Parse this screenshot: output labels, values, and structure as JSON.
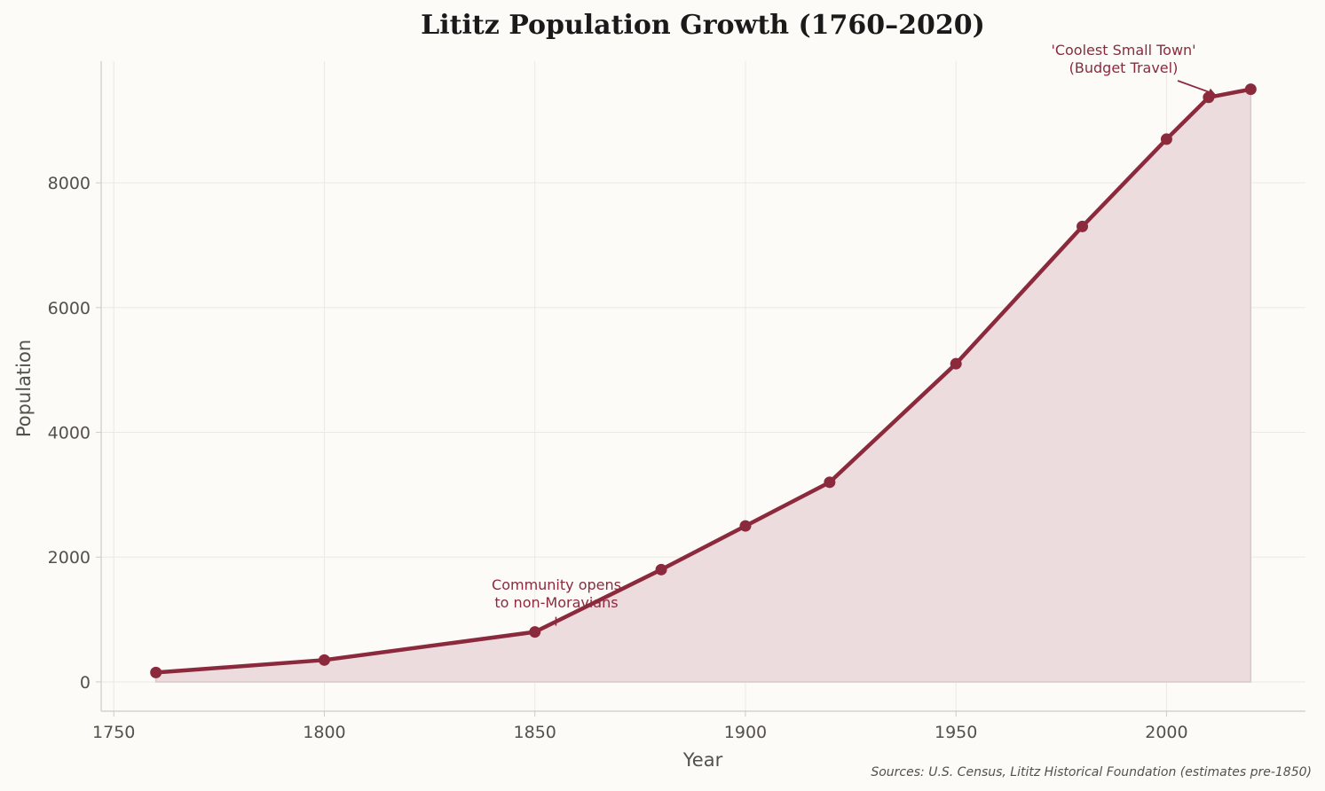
{
  "chart_data": {
    "type": "area",
    "title": "Lititz Population Growth (1760–2020)",
    "xlabel": "Year",
    "ylabel": "Population",
    "x": [
      1760,
      1800,
      1850,
      1880,
      1900,
      1920,
      1950,
      1980,
      2000,
      2010,
      2020
    ],
    "values": [
      150,
      350,
      800,
      1800,
      2500,
      3200,
      5100,
      7300,
      8700,
      9370,
      9500
    ],
    "xlim": [
      1747,
      2033
    ],
    "ylim": [
      -470,
      9950
    ],
    "xticks": [
      "1750",
      "1800",
      "1850",
      "1900",
      "1950",
      "2000"
    ],
    "yticks": [
      "0",
      "2000",
      "4000",
      "6000",
      "8000"
    ],
    "grid": true,
    "color": "#8b2a3c",
    "fill_color": "#ecdcdd",
    "annotations": [
      {
        "lines": [
          "Community opens",
          "to non-Moravians"
        ],
        "x": 1855,
        "y": 900
      },
      {
        "lines": [
          "'Coolest Small Town'",
          "(Budget Travel)"
        ],
        "x": 2010,
        "y": 9370
      }
    ],
    "source_note": "Sources: U.S. Census, Lititz Historical Foundation (estimates pre-1850)"
  }
}
